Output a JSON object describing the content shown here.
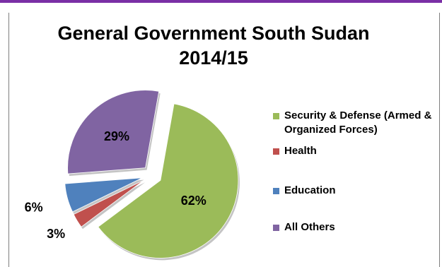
{
  "chart_data": {
    "type": "pie",
    "title_lines": [
      "General Government South Sudan",
      "2014/15"
    ],
    "categories": [
      "Security & Defense (Armed & Organized Forces)",
      "Health",
      "Education",
      "All Others"
    ],
    "values": [
      62,
      3,
      6,
      29
    ],
    "data_labels": [
      "62%",
      "3%",
      "6%",
      "29%"
    ],
    "colors": [
      "#9bbb59",
      "#c0504d",
      "#4f81bd",
      "#8064a2"
    ],
    "exploded": true,
    "legend_position": "right"
  }
}
